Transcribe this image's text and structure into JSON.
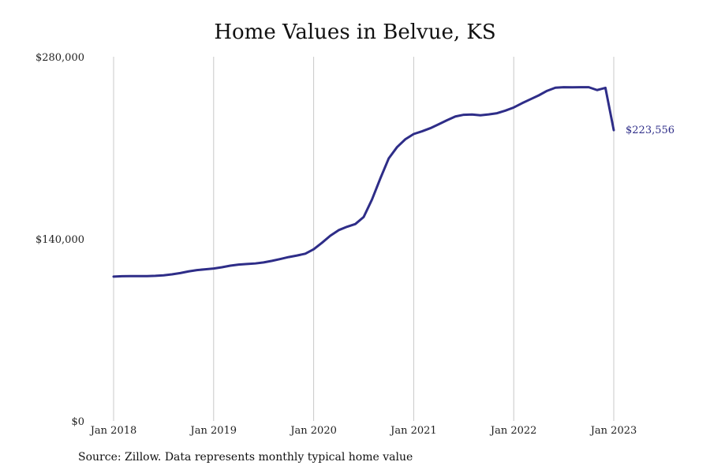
{
  "chart_data": {
    "type": "line",
    "title": "Home Values in Belvue, KS",
    "xlabel": "",
    "ylabel": "",
    "source": "Source: Zillow. Data represents monthly typical home value",
    "line_color": "#2e2d88",
    "grid": "vertical",
    "ylim": [
      0,
      280000
    ],
    "yticks": [
      "$0",
      "$140,000",
      "$280,000"
    ],
    "ytick_values": [
      0,
      140000,
      280000
    ],
    "xticks": [
      "Jan 2018",
      "Jan 2019",
      "Jan 2020",
      "Jan 2021",
      "Jan 2022",
      "Jan 2023"
    ],
    "end_label": "$223,556",
    "series": [
      {
        "x": [
          "2018-01",
          "2018-02",
          "2018-03",
          "2018-04",
          "2018-05",
          "2018-06",
          "2018-07",
          "2018-08",
          "2018-09",
          "2018-10",
          "2018-11",
          "2018-12",
          "2019-01",
          "2019-02",
          "2019-03",
          "2019-04",
          "2019-05",
          "2019-06",
          "2019-07",
          "2019-08",
          "2019-09",
          "2019-10",
          "2019-11",
          "2019-12",
          "2020-01",
          "2020-02",
          "2020-03",
          "2020-04",
          "2020-05",
          "2020-06",
          "2020-07",
          "2020-08",
          "2020-09",
          "2020-10",
          "2020-11",
          "2020-12",
          "2021-01",
          "2021-02",
          "2021-03",
          "2021-04",
          "2021-05",
          "2021-06",
          "2021-07",
          "2021-08",
          "2021-09",
          "2021-10",
          "2021-11",
          "2021-12",
          "2022-01",
          "2022-02",
          "2022-03",
          "2022-04",
          "2022-05",
          "2022-06",
          "2022-07",
          "2022-08",
          "2022-09",
          "2022-10",
          "2022-11",
          "2022-12",
          "2023-01"
        ],
        "values": [
          111000,
          111300,
          111400,
          111400,
          111400,
          111600,
          112000,
          112700,
          113700,
          115000,
          116000,
          116600,
          117200,
          118200,
          119400,
          120200,
          120700,
          121100,
          121900,
          123100,
          124500,
          126000,
          127200,
          128600,
          132000,
          137000,
          142400,
          146700,
          149300,
          151400,
          156800,
          170300,
          186500,
          201800,
          210500,
          216600,
          220600,
          222700,
          225100,
          228100,
          231200,
          234100,
          235400,
          235600,
          235000,
          235700,
          236600,
          238600,
          241000,
          244300,
          247300,
          250300,
          253800,
          256200,
          256600,
          256500,
          256600,
          256600,
          254400,
          256100,
          223556
        ]
      }
    ]
  }
}
